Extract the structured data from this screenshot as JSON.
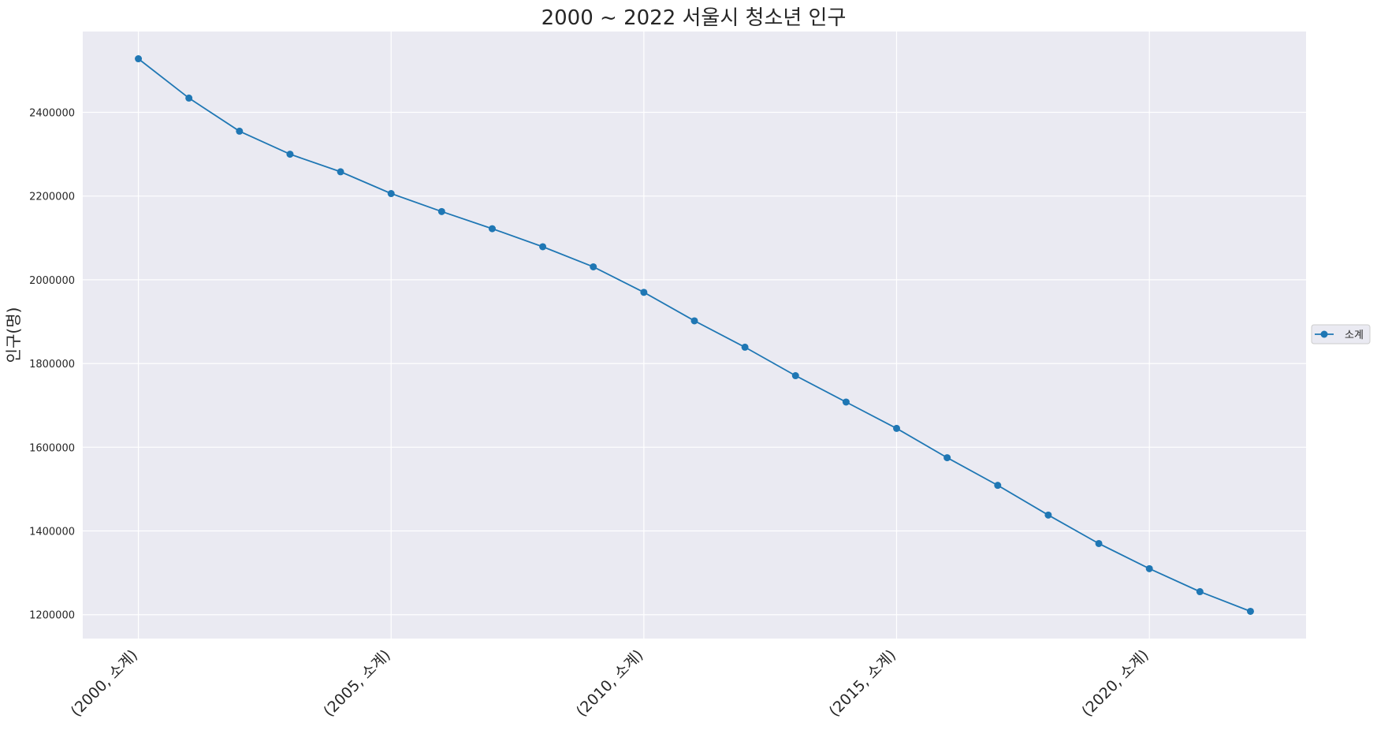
{
  "chart_data": {
    "type": "line",
    "title": "2000 ~ 2022 서울시 청소년 인구",
    "xlabel": "",
    "ylabel": "인구(명)",
    "x": [
      2000,
      2001,
      2002,
      2003,
      2004,
      2005,
      2006,
      2007,
      2008,
      2009,
      2010,
      2011,
      2012,
      2013,
      2014,
      2015,
      2016,
      2017,
      2018,
      2019,
      2020,
      2021,
      2022
    ],
    "x_tick_labels": [
      "(2000, 소계)",
      "(2005, 소계)",
      "(2010, 소계)",
      "(2015, 소계)",
      "(2020, 소계)"
    ],
    "x_tick_positions": [
      2000,
      2005,
      2010,
      2015,
      2020
    ],
    "y_tick_labels": [
      "1200000",
      "1400000",
      "1600000",
      "1800000",
      "2000000",
      "2200000",
      "2400000"
    ],
    "y_tick_values": [
      1200000,
      1400000,
      1600000,
      1800000,
      2000000,
      2200000,
      2400000
    ],
    "ylim": [
      1143000,
      2593000
    ],
    "xlim": [
      1998.9,
      2023.1
    ],
    "grid": true,
    "legend_position": "right-center",
    "series": [
      {
        "name": "소계",
        "color": "#1f77b4",
        "marker": "circle",
        "values": [
          2528000,
          2434000,
          2355000,
          2300000,
          2258000,
          2206000,
          2163000,
          2122000,
          2079000,
          2031000,
          1970000,
          1902000,
          1839000,
          1771000,
          1708000,
          1645000,
          1575000,
          1509000,
          1438000,
          1370000,
          1310000,
          1255000,
          1208000
        ]
      }
    ]
  },
  "colors": {
    "plot_background": "#eaeaf2",
    "grid": "#ffffff",
    "line": "#1f77b4"
  }
}
